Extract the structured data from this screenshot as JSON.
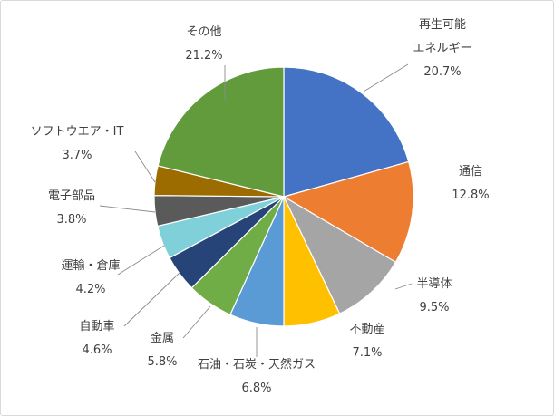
{
  "chart_data": {
    "type": "pie",
    "title": "",
    "slices": [
      {
        "label": "再生可能\nエネルギー",
        "value": 20.7,
        "value_label": "20.7%",
        "color": "#4472c4"
      },
      {
        "label": "通信",
        "value": 12.8,
        "value_label": "12.8%",
        "color": "#ed7d31"
      },
      {
        "label": "半導体",
        "value": 9.5,
        "value_label": "9.5%",
        "color": "#a5a5a5"
      },
      {
        "label": "不動産",
        "value": 7.1,
        "value_label": "7.1%",
        "color": "#ffc000"
      },
      {
        "label": "石油・石炭・天然ガス",
        "value": 6.8,
        "value_label": "6.8%",
        "color": "#5b9bd5"
      },
      {
        "label": "金属",
        "value": 5.8,
        "value_label": "5.8%",
        "color": "#70ad47"
      },
      {
        "label": "自動車",
        "value": 4.6,
        "value_label": "4.6%",
        "color": "#264478"
      },
      {
        "label": "運輸・倉庫",
        "value": 4.2,
        "value_label": "4.2%",
        "color": "#7fd0d8"
      },
      {
        "label": "電子部品",
        "value": 3.8,
        "value_label": "3.8%",
        "color": "#5a5a5a"
      },
      {
        "label": "ソフトウエア・IT",
        "value": 3.7,
        "value_label": "3.7%",
        "color": "#9c6c00"
      },
      {
        "label": "その他",
        "value": 21.2,
        "value_label": "21.2%",
        "color": "#629b3c"
      }
    ]
  }
}
